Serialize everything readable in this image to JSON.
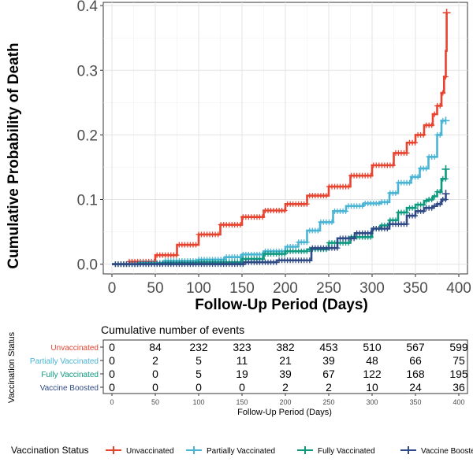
{
  "chart_data": [
    {
      "type": "line",
      "title": "",
      "xlabel": "Follow-Up Period (Days)",
      "ylabel": "Cumulative Probability of Death",
      "xlim": [
        -10,
        410
      ],
      "ylim": [
        -0.015,
        0.405
      ],
      "x_ticks": [
        0,
        50,
        100,
        150,
        200,
        250,
        300,
        350,
        400
      ],
      "x_tick_labels": [
        "0",
        "50",
        "100",
        "150",
        "200",
        "250",
        "300",
        "350",
        "400"
      ],
      "y_ticks": [
        0.0,
        0.1,
        0.2,
        0.3,
        0.4
      ],
      "y_tick_labels": [
        "0.0",
        "0.1",
        "0.2",
        "0.3",
        "0.4"
      ],
      "grid": true,
      "series": [
        {
          "name": "Unvaccinated",
          "color": "#e8432f",
          "x": [
            0,
            20,
            50,
            75,
            100,
            125,
            150,
            175,
            200,
            225,
            250,
            275,
            300,
            325,
            340,
            350,
            360,
            370,
            375,
            380,
            383,
            385,
            386
          ],
          "y": [
            0.0,
            0.004,
            0.014,
            0.03,
            0.046,
            0.061,
            0.073,
            0.083,
            0.093,
            0.106,
            0.12,
            0.137,
            0.153,
            0.172,
            0.188,
            0.2,
            0.215,
            0.232,
            0.245,
            0.265,
            0.29,
            0.33,
            0.389
          ]
        },
        {
          "name": "Partially Vaccinated",
          "color": "#4ab4d4",
          "x": [
            0,
            30,
            60,
            100,
            130,
            150,
            175,
            200,
            215,
            225,
            240,
            255,
            270,
            290,
            310,
            320,
            330,
            345,
            355,
            365,
            375,
            380,
            385
          ],
          "y": [
            0.0,
            0.002,
            0.005,
            0.007,
            0.011,
            0.015,
            0.02,
            0.027,
            0.034,
            0.052,
            0.065,
            0.082,
            0.09,
            0.094,
            0.096,
            0.11,
            0.126,
            0.135,
            0.148,
            0.166,
            0.2,
            0.222,
            0.222
          ]
        },
        {
          "name": "Fully Vaccinated",
          "color": "#0f9a80",
          "x": [
            0,
            30,
            60,
            100,
            150,
            175,
            200,
            225,
            250,
            275,
            300,
            310,
            320,
            330,
            340,
            350,
            360,
            365,
            370,
            375,
            380,
            385
          ],
          "y": [
            0.0,
            0.001,
            0.002,
            0.003,
            0.008,
            0.016,
            0.02,
            0.023,
            0.033,
            0.042,
            0.055,
            0.06,
            0.068,
            0.08,
            0.087,
            0.092,
            0.098,
            0.1,
            0.105,
            0.112,
            0.132,
            0.147
          ]
        },
        {
          "name": "Vaccine Boosted",
          "color": "#2f4a86",
          "x": [
            0,
            150,
            152,
            190,
            230,
            260,
            280,
            300,
            320,
            340,
            350,
            360,
            370,
            375,
            380,
            385
          ],
          "y": [
            0.0,
            0.0,
            0.003,
            0.006,
            0.025,
            0.04,
            0.048,
            0.055,
            0.062,
            0.075,
            0.082,
            0.087,
            0.09,
            0.093,
            0.1,
            0.109
          ]
        }
      ]
    },
    {
      "type": "table",
      "title": "Cumulative number of events",
      "xlabel": "Follow-Up Period (Days)",
      "ylabel": "Vaccination Status",
      "x": [
        0,
        50,
        100,
        150,
        200,
        250,
        300,
        350,
        400
      ],
      "x_tick_labels": [
        "0",
        "50",
        "100",
        "150",
        "200",
        "250",
        "300",
        "350",
        "400"
      ],
      "rows": [
        {
          "name": "Unvaccinated",
          "color": "#e8432f",
          "values": [
            "0",
            "84",
            "232",
            "323",
            "382",
            "453",
            "510",
            "567",
            "599"
          ]
        },
        {
          "name": "Partially Vaccinated",
          "color": "#4ab4d4",
          "values": [
            "0",
            "2",
            "5",
            "11",
            "21",
            "39",
            "48",
            "66",
            "75"
          ]
        },
        {
          "name": "Fully Vaccinated",
          "color": "#0f9a80",
          "values": [
            "0",
            "0",
            "5",
            "19",
            "39",
            "67",
            "122",
            "168",
            "195"
          ]
        },
        {
          "name": "Vaccine Boosted",
          "color": "#2f4a86",
          "values": [
            "0",
            "0",
            "0",
            "0",
            "2",
            "2",
            "10",
            "24",
            "36"
          ]
        }
      ]
    }
  ],
  "legend": {
    "title": "Vaccination Status",
    "placement": "bottom",
    "items": [
      {
        "label": "Unvaccinated",
        "color": "#e8432f"
      },
      {
        "label": "Partially Vaccinated",
        "color": "#4ab4d4"
      },
      {
        "label": "Fully Vaccinated",
        "color": "#0f9a80"
      },
      {
        "label": "Vaccine Boosted",
        "color": "#2f4a86"
      }
    ]
  }
}
